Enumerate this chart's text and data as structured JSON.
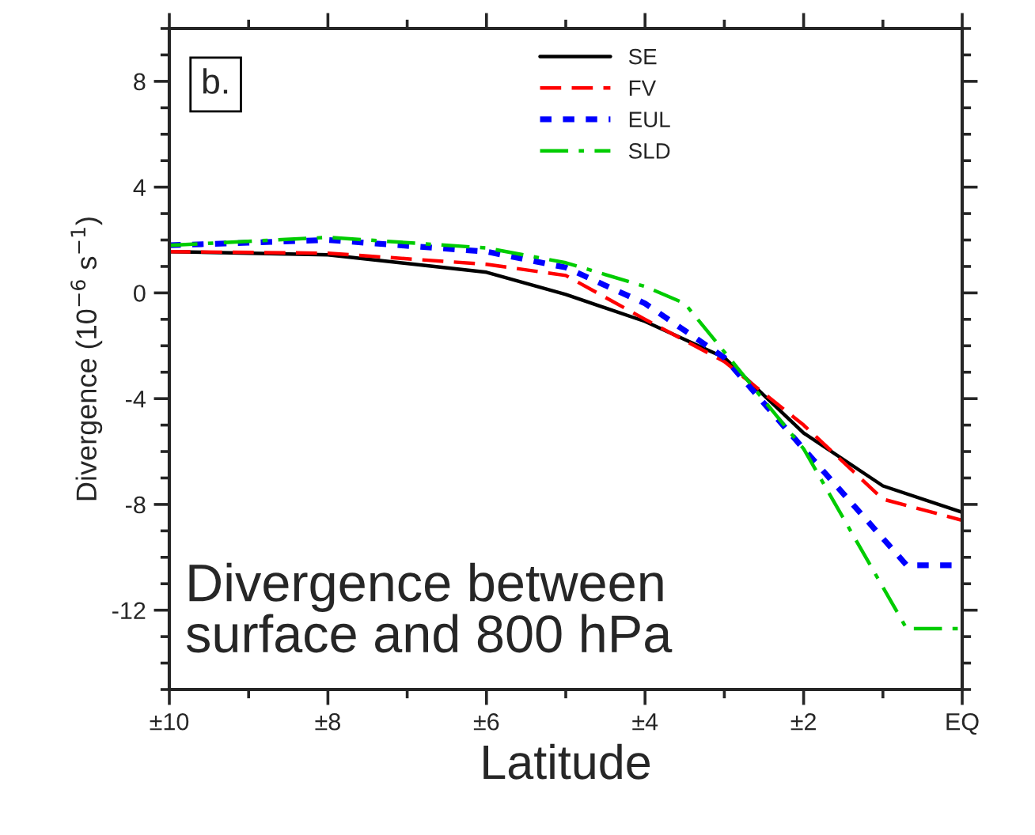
{
  "chart_data": {
    "type": "line",
    "xlabel": "Latitude",
    "ylabel": "Divergence (10$^{−6}$ s$^{−1}$)",
    "xlim": [
      10,
      0
    ],
    "ylim": [
      -15,
      10
    ],
    "xticks": [
      {
        "value": 10,
        "label": "±10"
      },
      {
        "value": 8,
        "label": "±8"
      },
      {
        "value": 6,
        "label": "±6"
      },
      {
        "value": 4,
        "label": "±4"
      },
      {
        "value": 2,
        "label": "±2"
      },
      {
        "value": 0,
        "label": "EQ"
      }
    ],
    "yticks": [
      -12,
      -8,
      -4,
      0,
      4,
      8
    ],
    "grid": false,
    "legend": "top",
    "annotations": [
      "b.",
      "Divergence between\nsurface and 800 hPa"
    ],
    "series": [
      {
        "name": "SE",
        "color": "#000000",
        "line_style": "solid",
        "x": [
          10,
          8,
          6,
          5,
          4,
          3,
          2,
          1,
          0
        ],
        "values": [
          1.56,
          1.44,
          0.78,
          -0.06,
          -1.08,
          -2.45,
          -5.3,
          -7.3,
          -8.3
        ]
      },
      {
        "name": "FV",
        "color": "#ff0000",
        "line_style": "dashed",
        "x": [
          10,
          8,
          6,
          5,
          4,
          3,
          2,
          1,
          0
        ],
        "values": [
          1.56,
          1.5,
          1.08,
          0.66,
          -1.0,
          -2.6,
          -5.0,
          -7.8,
          -8.6
        ]
      },
      {
        "name": "EUL",
        "color": "#0000ff",
        "line_style": "dotted",
        "x": [
          10,
          8,
          6,
          5,
          4,
          3,
          2,
          0.7,
          0
        ],
        "values": [
          1.8,
          2.0,
          1.56,
          0.96,
          -0.4,
          -2.45,
          -5.9,
          -10.3,
          -10.3
        ]
      },
      {
        "name": "SLD",
        "color": "#00cc00",
        "line_style": "dashdot",
        "x": [
          10,
          8,
          6,
          5,
          4,
          3.5,
          2,
          0.7,
          0
        ],
        "values": [
          1.8,
          2.1,
          1.7,
          1.14,
          0.24,
          -0.4,
          -5.9,
          -12.7,
          -12.7
        ]
      }
    ]
  }
}
